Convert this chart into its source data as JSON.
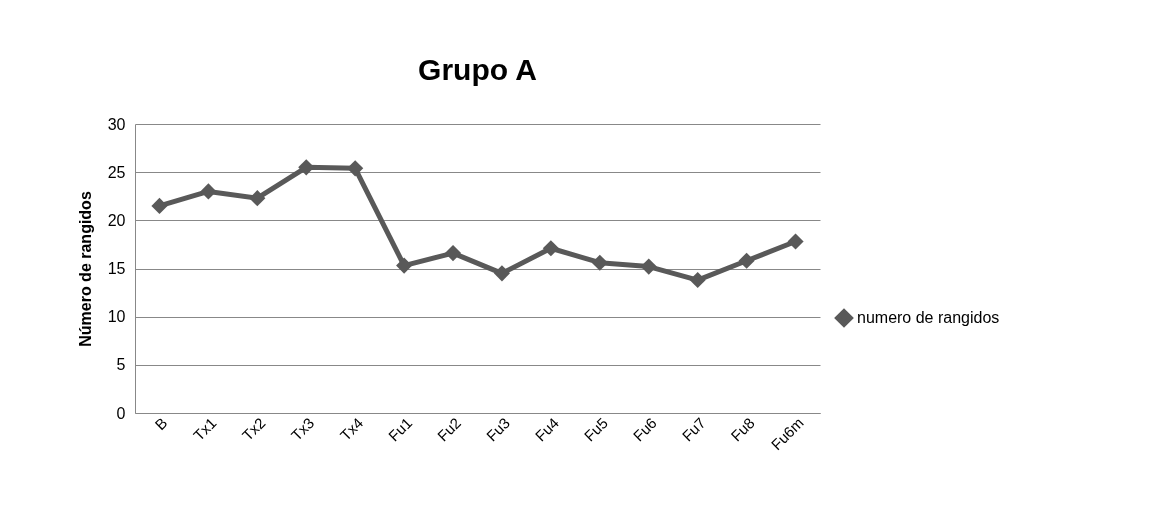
{
  "chart_data": {
    "type": "line",
    "title": "Grupo A",
    "ylabel": "Número de rangidos",
    "categories": [
      "B",
      "Tx1",
      "Tx2",
      "Tx3",
      "Tx4",
      "Fu1",
      "Fu2",
      "Fu3",
      "Fu4",
      "Fu5",
      "Fu6",
      "Fu7",
      "Fu8",
      "Fu6m"
    ],
    "series": [
      {
        "name": "numero de rangidos",
        "color": "#595959",
        "values": [
          21.5,
          23.0,
          22.3,
          25.5,
          25.4,
          15.3,
          16.6,
          14.5,
          17.1,
          15.6,
          15.2,
          13.8,
          15.8,
          17.8
        ]
      }
    ],
    "ylim": [
      0,
      30
    ],
    "yticks": [
      0,
      5,
      10,
      15,
      20,
      25,
      30
    ],
    "grid": "y",
    "legend": "right",
    "marker": "diamond",
    "line_style": "solid"
  }
}
